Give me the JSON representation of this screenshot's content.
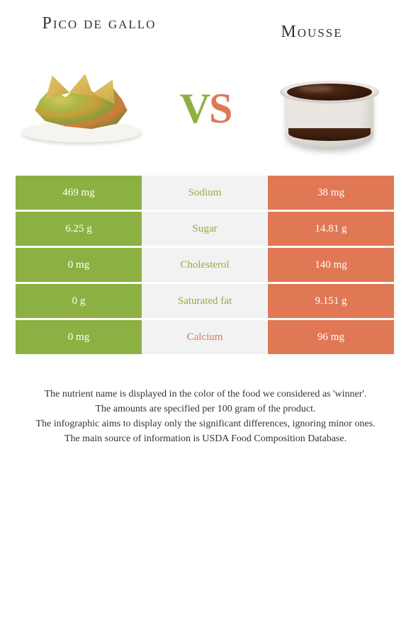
{
  "titles": {
    "left": "Pico de gallo",
    "right": "Mousse"
  },
  "vs": {
    "v": "V",
    "s": "S"
  },
  "colors": {
    "green": "#8db042",
    "orange": "#e07856",
    "gray": "#f2f2f2"
  },
  "rows": [
    {
      "label": "Sodium",
      "left": "469 mg",
      "right": "38 mg",
      "winner": "left"
    },
    {
      "label": "Sugar",
      "left": "6.25 g",
      "right": "14.81 g",
      "winner": "left"
    },
    {
      "label": "Cholesterol",
      "left": "0 mg",
      "right": "140 mg",
      "winner": "left"
    },
    {
      "label": "Saturated fat",
      "left": "0 g",
      "right": "9.151 g",
      "winner": "left"
    },
    {
      "label": "Calcium",
      "left": "0 mg",
      "right": "96 mg",
      "winner": "right"
    }
  ],
  "footer": [
    "The nutrient name is displayed in the color of the food we considered as 'winner'.",
    "The amounts are specified per 100 gram of the product.",
    "The infographic aims to display only the significant differences, ignoring minor ones.",
    "The main source of information is USDA Food Composition Database."
  ]
}
